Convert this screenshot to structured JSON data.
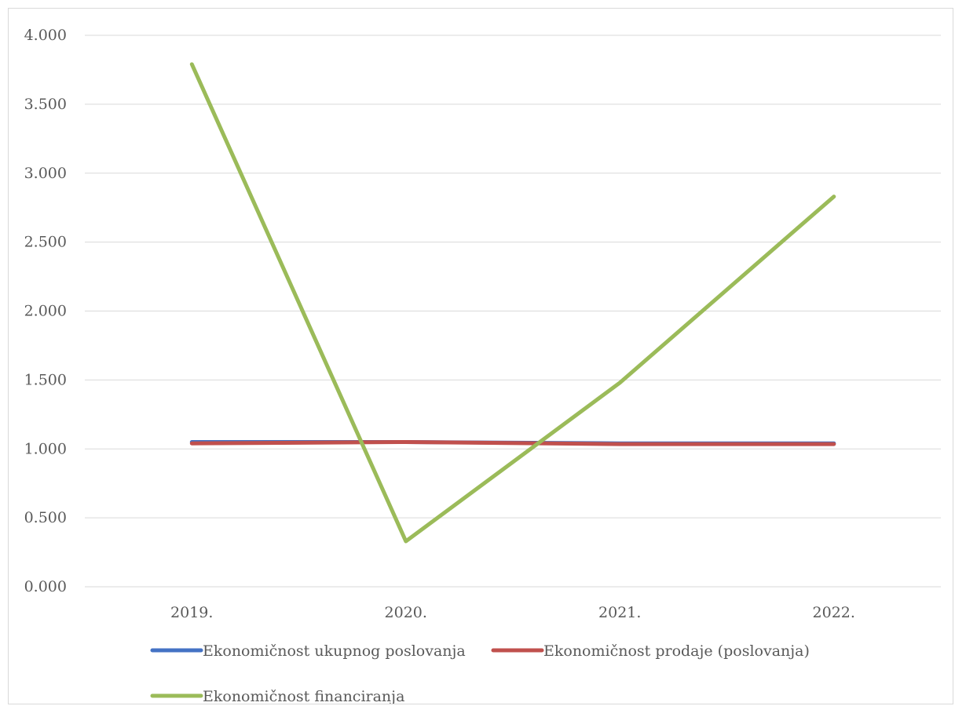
{
  "chart_data": {
    "type": "line",
    "title": "",
    "xlabel": "",
    "ylabel": "",
    "categories": [
      "2019.",
      "2020.",
      "2021.",
      "2022."
    ],
    "ylim": [
      0,
      4
    ],
    "yticks": [
      "0.000",
      "0.500",
      "1.000",
      "1.500",
      "2.000",
      "2.500",
      "3.000",
      "3.500",
      "4.000"
    ],
    "ytick_values": [
      0,
      0.5,
      1,
      1.5,
      2,
      2.5,
      3,
      3.5,
      4
    ],
    "grid": true,
    "legend_position": "bottom",
    "series": [
      {
        "name": "Ekonomičnost ukupnog poslovanja",
        "color": "#4472c4",
        "values": [
          1.05,
          1.05,
          1.04,
          1.04
        ]
      },
      {
        "name": "Ekonomičnost prodaje (poslovanja)",
        "color": "#c0504d",
        "values": [
          1.04,
          1.05,
          1.035,
          1.035
        ]
      },
      {
        "name": "Ekonomičnost financiranja",
        "color": "#9bbb59",
        "values": [
          3.79,
          0.33,
          1.48,
          2.83
        ]
      }
    ]
  }
}
